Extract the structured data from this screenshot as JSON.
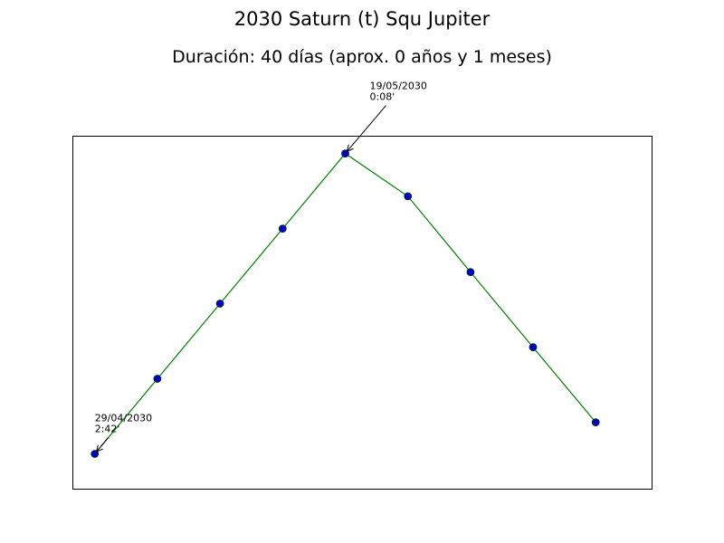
{
  "chart_data": {
    "type": "line",
    "title": "2030 Saturn (t) Squ Jupiter",
    "subtitle": "Duración: 40 días (aprox. 0 años y 1 meses)",
    "xlabel": "",
    "ylabel": "",
    "grid": false,
    "show_ticks": false,
    "xlim": [
      -0.35,
      8.9
    ],
    "ylim": [
      -0.47,
      4.23
    ],
    "line_color": "#008000",
    "marker_fill": "#0000cc",
    "marker_edge": "#003300",
    "x": [
      0,
      1,
      2,
      3,
      4,
      5,
      6,
      7,
      8
    ],
    "y": [
      0,
      1,
      2,
      3,
      4,
      3.43,
      2.42,
      1.42,
      0.42
    ],
    "annotations": [
      {
        "point_index": 0,
        "date": "29/04/2030",
        "value": "2:42'"
      },
      {
        "point_index": 4,
        "date": "19/05/2030",
        "value": "0:08'"
      }
    ]
  }
}
